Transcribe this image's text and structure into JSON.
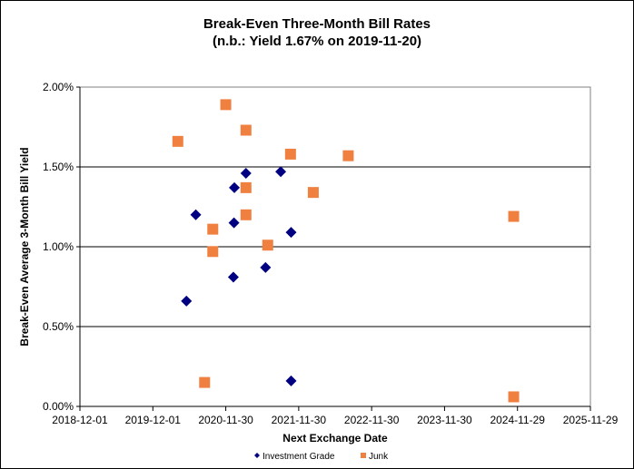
{
  "chart_data": {
    "type": "scatter",
    "title": "Break-Even Three-Month Bill Rates",
    "subtitle": "(n.b.: Yield  1.67% on 2019-11-20)",
    "xlabel": "Next Exchange Date",
    "ylabel": "Break-Even Average 3-Month  Bill Yield",
    "x_ticks": [
      "2018-12-01",
      "2019-12-01",
      "2020-11-30",
      "2021-11-30",
      "2022-11-30",
      "2023-11-30",
      "2024-11-29",
      "2025-11-29"
    ],
    "y_ticks": [
      "0.00%",
      "0.50%",
      "1.00%",
      "1.50%",
      "2.00%"
    ],
    "xlim": [
      "2018-12-01",
      "2025-11-29"
    ],
    "ylim": [
      0,
      2.0
    ],
    "grid": "horizontal major",
    "legend_position": "bottom",
    "series": [
      {
        "name": "Investment Grade",
        "marker": "diamond",
        "color": "#000080",
        "points": [
          {
            "x": "2020-05-17",
            "y": 0.66
          },
          {
            "x": "2020-07-03",
            "y": 1.2
          },
          {
            "x": "2021-01-07",
            "y": 0.81
          },
          {
            "x": "2021-01-10",
            "y": 1.15
          },
          {
            "x": "2021-01-12",
            "y": 1.37
          },
          {
            "x": "2021-03-11",
            "y": 1.46
          },
          {
            "x": "2021-06-17",
            "y": 0.87
          },
          {
            "x": "2021-09-01",
            "y": 1.47
          },
          {
            "x": "2021-10-23",
            "y": 1.09
          },
          {
            "x": "2021-10-23",
            "y": 0.16
          }
        ]
      },
      {
        "name": "Junk",
        "marker": "square",
        "color": "#F08040",
        "points": [
          {
            "x": "2020-04-04",
            "y": 1.66
          },
          {
            "x": "2020-08-16",
            "y": 0.15
          },
          {
            "x": "2020-09-26",
            "y": 1.11
          },
          {
            "x": "2020-09-26",
            "y": 0.97
          },
          {
            "x": "2020-11-30",
            "y": 1.89
          },
          {
            "x": "2021-03-11",
            "y": 1.73
          },
          {
            "x": "2021-03-11",
            "y": 1.37
          },
          {
            "x": "2021-03-11",
            "y": 1.2
          },
          {
            "x": "2021-06-28",
            "y": 1.01
          },
          {
            "x": "2021-10-20",
            "y": 1.58
          },
          {
            "x": "2022-02-11",
            "y": 1.34
          },
          {
            "x": "2022-08-05",
            "y": 1.57
          },
          {
            "x": "2024-11-10",
            "y": 1.19
          },
          {
            "x": "2024-11-10",
            "y": 0.06
          }
        ]
      }
    ]
  }
}
